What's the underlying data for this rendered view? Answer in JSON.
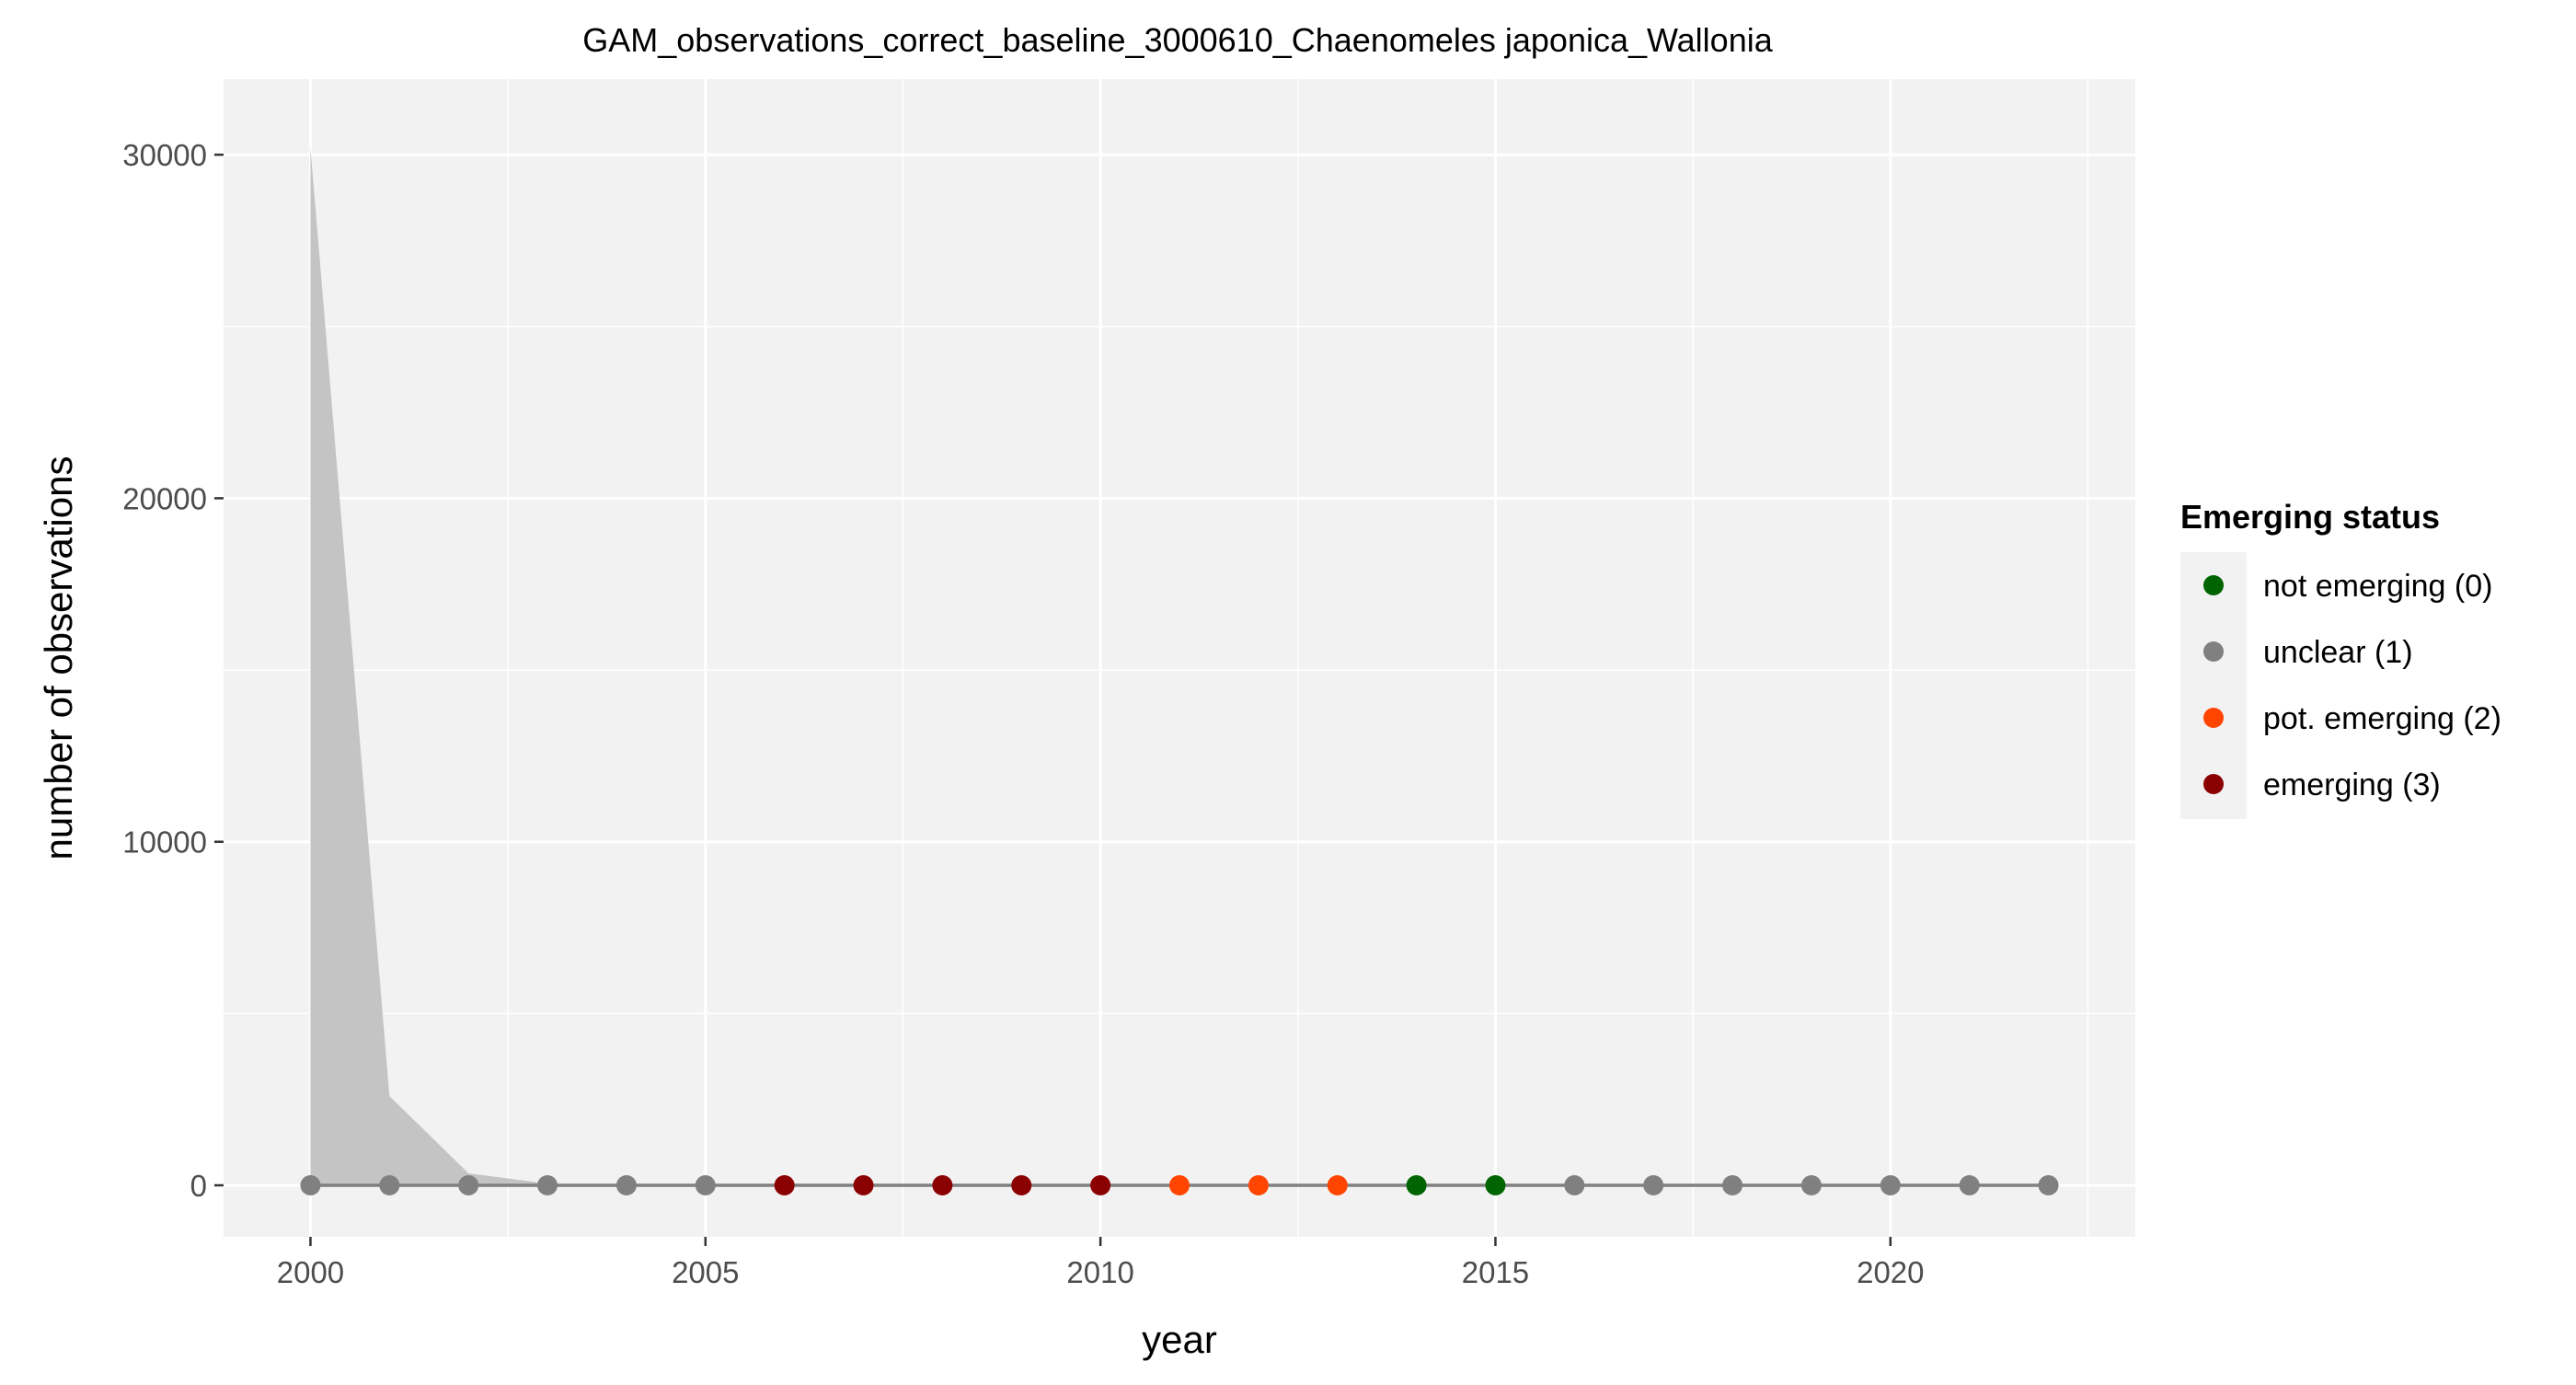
{
  "chart_data": {
    "type": "line",
    "title": "GAM_observations_correct_baseline_3000610_Chaenomeles japonica_Wallonia",
    "xlabel": "year",
    "ylabel": "number of observations",
    "xlim": [
      1998.9,
      2023.1
    ],
    "ylim": [
      -1500,
      32200
    ],
    "x_ticks": [
      2000,
      2005,
      2010,
      2015,
      2020
    ],
    "x_tick_labels": [
      "2000",
      "2005",
      "2010",
      "2015",
      "2020"
    ],
    "y_ticks": [
      0,
      10000,
      20000,
      30000
    ],
    "y_tick_labels": [
      "0",
      "10000",
      "20000",
      "30000"
    ],
    "grid": true,
    "legend": {
      "title": "Emerging status",
      "position": "right",
      "entries": [
        {
          "label": "not emerging (0)",
          "color": "#006400"
        },
        {
          "label": "unclear (1)",
          "color": "#808080"
        },
        {
          "label": "pot. emerging (2)",
          "color": "#FF4500"
        },
        {
          "label": "emerging (3)",
          "color": "#8B0000"
        }
      ]
    },
    "x": [
      2000,
      2001,
      2002,
      2003,
      2004,
      2005,
      2006,
      2007,
      2008,
      2009,
      2010,
      2011,
      2012,
      2013,
      2014,
      2015,
      2016,
      2017,
      2018,
      2019,
      2020,
      2021,
      2022
    ],
    "fit": [
      0,
      0,
      0,
      0,
      0,
      0,
      0,
      0,
      0,
      0,
      0,
      0,
      0,
      0,
      0,
      0,
      0,
      0,
      0,
      0,
      0,
      0,
      0
    ],
    "ci_upper": [
      30200,
      2600,
      350,
      50,
      0,
      0,
      0,
      0,
      0,
      0,
      0,
      0,
      0,
      0,
      0,
      0,
      0,
      0,
      0,
      0,
      0,
      0,
      0
    ],
    "ci_lower": [
      0,
      0,
      0,
      0,
      0,
      0,
      0,
      0,
      0,
      0,
      0,
      0,
      0,
      0,
      0,
      0,
      0,
      0,
      0,
      0,
      0,
      0,
      0
    ],
    "status": [
      1,
      1,
      1,
      1,
      1,
      1,
      3,
      3,
      3,
      3,
      3,
      2,
      2,
      2,
      0,
      0,
      1,
      1,
      1,
      1,
      1,
      1,
      1
    ],
    "colors": {
      "panel_bg": "#F2F2F2",
      "grid": "#FFFFFF",
      "ribbon": "#C4C4C4",
      "fit_line": "#808080"
    }
  }
}
